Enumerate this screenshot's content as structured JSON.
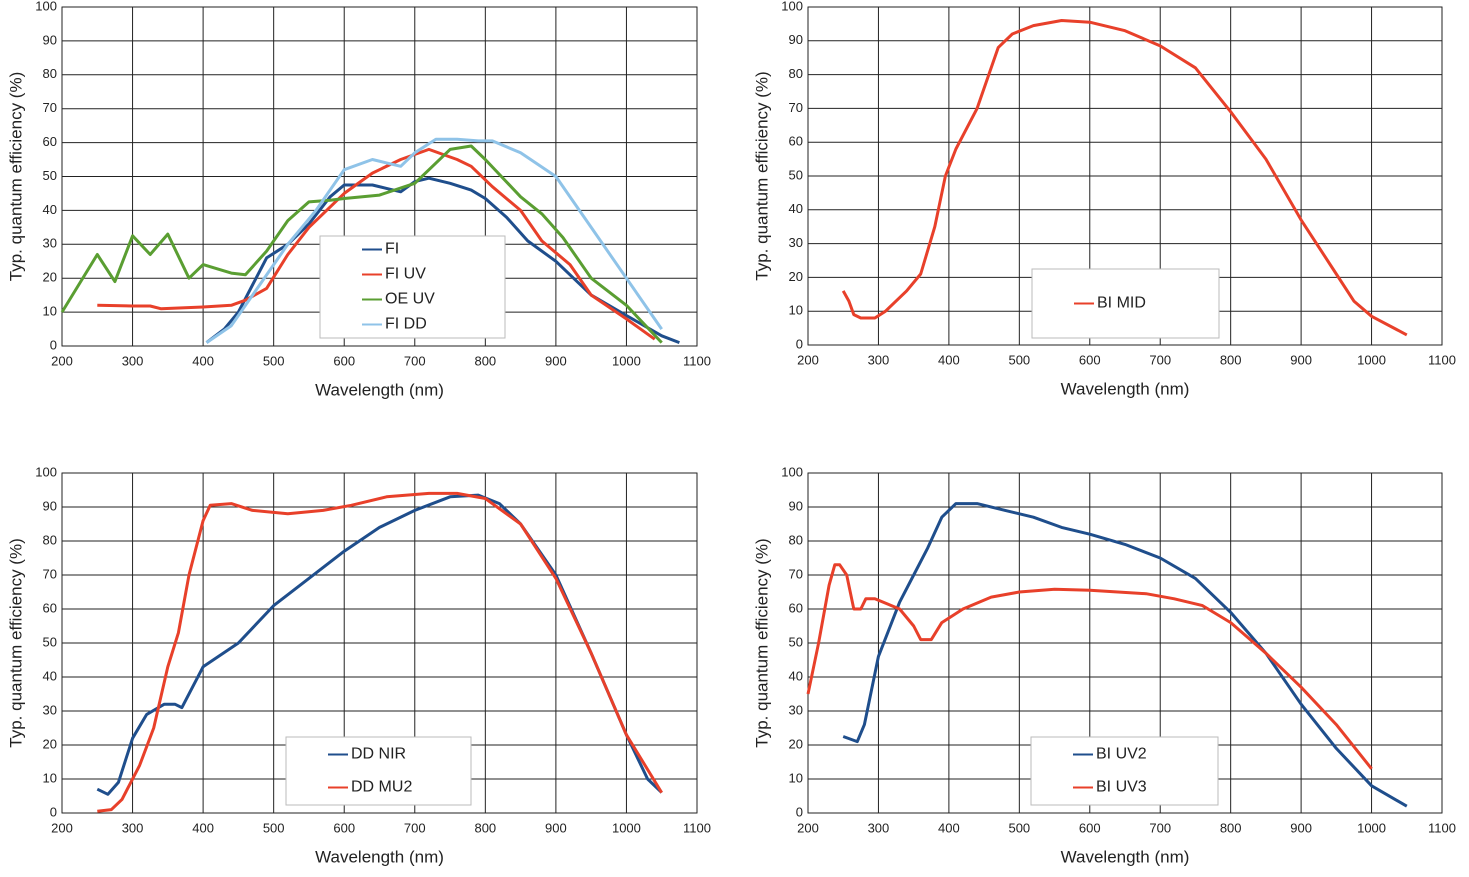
{
  "chart_data": [
    {
      "type": "line",
      "xlabel": "Wavelength (nm)",
      "ylabel": "Typ. quantum efficiency (%)",
      "xlim": [
        200,
        1100
      ],
      "xticks": [
        200,
        300,
        400,
        500,
        600,
        700,
        800,
        900,
        1000,
        1100
      ],
      "ylim": [
        0,
        100
      ],
      "yticks": [
        0,
        10,
        20,
        30,
        40,
        50,
        60,
        70,
        80,
        90,
        100
      ],
      "grid": true,
      "series": [
        {
          "name": "FI",
          "color": "#1f4e8c",
          "x": [
            405,
            430,
            450,
            470,
            490,
            520,
            550,
            580,
            600,
            640,
            660,
            680,
            700,
            720,
            750,
            780,
            800,
            830,
            860,
            900,
            950,
            1000,
            1050,
            1075
          ],
          "values": [
            1,
            5,
            10,
            18,
            26,
            30,
            36,
            44,
            47.5,
            47.5,
            46.5,
            45.5,
            48.5,
            49.5,
            48,
            46,
            43.5,
            38,
            31,
            25,
            15,
            9,
            3,
            1
          ]
        },
        {
          "name": "FI UV",
          "color": "#e8402a",
          "x": [
            250,
            300,
            325,
            340,
            400,
            440,
            460,
            490,
            520,
            550,
            600,
            640,
            680,
            720,
            760,
            780,
            810,
            850,
            880,
            920,
            950,
            1000,
            1040
          ],
          "values": [
            12,
            11.8,
            11.8,
            11,
            11.5,
            12,
            13.5,
            17,
            27,
            35,
            45,
            51,
            55,
            58,
            55,
            53,
            47,
            40,
            31,
            24,
            15,
            8,
            2
          ]
        },
        {
          "name": "OE UV",
          "color": "#5a9e32",
          "x": [
            200,
            250,
            275,
            300,
            325,
            350,
            380,
            400,
            440,
            460,
            490,
            520,
            550,
            580,
            600,
            650,
            700,
            750,
            780,
            800,
            850,
            880,
            910,
            950,
            1000,
            1050
          ],
          "values": [
            10,
            27,
            19,
            32.5,
            27,
            33,
            20,
            24,
            21.5,
            21,
            28,
            37,
            42.5,
            43,
            43.5,
            44.5,
            48,
            58,
            59,
            55,
            44,
            39,
            32,
            20,
            12,
            1
          ]
        },
        {
          "name": "FI DD",
          "color": "#8fc3e8",
          "x": [
            405,
            440,
            480,
            520,
            560,
            600,
            640,
            660,
            680,
            700,
            730,
            760,
            790,
            810,
            850,
            900,
            950,
            1000,
            1050
          ],
          "values": [
            1,
            6,
            18,
            30,
            40,
            52,
            55,
            54,
            53,
            57,
            61,
            61,
            60.5,
            60.5,
            57,
            50,
            35,
            20,
            5
          ]
        }
      ]
    },
    {
      "type": "line",
      "xlabel": "Wavelength (nm)",
      "ylabel": "Typ. quantum efficiency (%)",
      "xlim": [
        200,
        1100
      ],
      "xticks": [
        200,
        300,
        400,
        500,
        600,
        700,
        800,
        900,
        1000,
        1100
      ],
      "ylim": [
        0,
        100
      ],
      "yticks": [
        0,
        10,
        20,
        30,
        40,
        50,
        60,
        70,
        80,
        90,
        100
      ],
      "grid": true,
      "series": [
        {
          "name": "BI MID",
          "color": "#e8402a",
          "x": [
            250,
            258,
            265,
            275,
            295,
            310,
            340,
            360,
            380,
            395,
            410,
            440,
            460,
            470,
            490,
            520,
            560,
            600,
            650,
            700,
            750,
            800,
            850,
            900,
            950,
            975,
            1000,
            1050
          ],
          "values": [
            16,
            13,
            9,
            8,
            8,
            10,
            16,
            21,
            35,
            50,
            58,
            70,
            82,
            88,
            92,
            94.5,
            96,
            95.5,
            93,
            88.5,
            82,
            69,
            55,
            37,
            21,
            13,
            8.5,
            3
          ]
        }
      ]
    },
    {
      "type": "line",
      "xlabel": "Wavelength (nm)",
      "ylabel": "Typ. quantum efficiency (%)",
      "xlim": [
        200,
        1100
      ],
      "xticks": [
        200,
        300,
        400,
        500,
        600,
        700,
        800,
        900,
        1000,
        1100
      ],
      "ylim": [
        0,
        100
      ],
      "yticks": [
        0,
        10,
        20,
        30,
        40,
        50,
        60,
        70,
        80,
        90,
        100
      ],
      "grid": true,
      "series": [
        {
          "name": "DD NIR",
          "color": "#1f4e8c",
          "x": [
            250,
            265,
            280,
            300,
            320,
            345,
            360,
            370,
            400,
            450,
            500,
            550,
            600,
            650,
            700,
            750,
            790,
            820,
            850,
            900,
            950,
            1000,
            1030,
            1050
          ],
          "values": [
            7,
            5.5,
            9,
            22,
            29,
            32,
            32,
            31,
            43,
            50,
            61,
            69,
            77,
            84,
            89,
            93,
            93.5,
            91,
            85,
            70,
            47,
            23,
            10,
            6
          ]
        },
        {
          "name": "DD MU2",
          "color": "#e8402a",
          "x": [
            250,
            270,
            285,
            310,
            330,
            350,
            365,
            380,
            400,
            410,
            440,
            470,
            520,
            570,
            610,
            660,
            720,
            760,
            800,
            850,
            900,
            950,
            1000,
            1050
          ],
          "values": [
            0.5,
            1,
            4,
            14,
            25,
            43,
            53,
            70,
            86,
            90.5,
            91,
            89,
            88,
            89,
            90.5,
            93,
            94,
            94,
            92.5,
            85,
            69,
            47,
            23,
            6
          ]
        }
      ]
    },
    {
      "type": "line",
      "xlabel": "Wavelength (nm)",
      "ylabel": "Typ. quantum efficiency (%)",
      "xlim": [
        200,
        1100
      ],
      "xticks": [
        200,
        300,
        400,
        500,
        600,
        700,
        800,
        900,
        1000,
        1100
      ],
      "ylim": [
        0,
        100
      ],
      "yticks": [
        0,
        10,
        20,
        30,
        40,
        50,
        60,
        70,
        80,
        90,
        100
      ],
      "grid": true,
      "series": [
        {
          "name": "BI UV2",
          "color": "#1f4e8c",
          "x": [
            250,
            270,
            280,
            300,
            330,
            350,
            370,
            390,
            410,
            440,
            480,
            520,
            560,
            600,
            650,
            700,
            750,
            800,
            850,
            900,
            950,
            1000,
            1050
          ],
          "values": [
            22.5,
            21,
            26,
            46,
            62,
            70,
            78,
            87,
            91,
            91,
            89,
            87,
            84,
            82,
            79,
            75,
            69,
            59,
            47,
            32,
            19,
            8,
            2
          ]
        },
        {
          "name": "BI UV3",
          "color": "#e8402a",
          "x": [
            200,
            215,
            230,
            238,
            245,
            255,
            265,
            275,
            282,
            295,
            330,
            350,
            360,
            375,
            390,
            420,
            460,
            500,
            550,
            600,
            680,
            720,
            760,
            800,
            850,
            900,
            950,
            1000
          ],
          "values": [
            35,
            50,
            67,
            73,
            73,
            70,
            60,
            60,
            63,
            63,
            60,
            55,
            51,
            51,
            56,
            60,
            63.5,
            65,
            65.8,
            65.5,
            64.5,
            63,
            61,
            56,
            47,
            37,
            26,
            13
          ]
        }
      ]
    }
  ]
}
